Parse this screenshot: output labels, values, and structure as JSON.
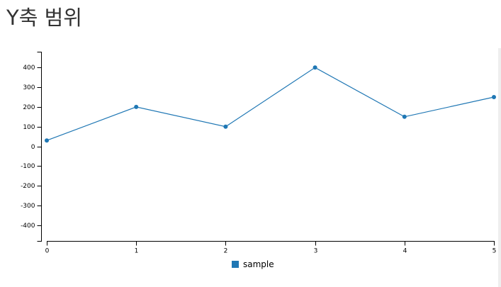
{
  "page": {
    "title": "Y축 범위"
  },
  "colors": {
    "series": "#1f77b4",
    "axis": "#000000",
    "title": "#333333"
  },
  "chart_data": {
    "type": "line",
    "title": "",
    "xlabel": "",
    "ylabel": "",
    "x": [
      0,
      1,
      2,
      3,
      4,
      5
    ],
    "xlim": [
      0,
      5
    ],
    "ylim": [
      -480,
      480
    ],
    "x_ticks": [
      0,
      1,
      2,
      3,
      4,
      5
    ],
    "y_ticks": [
      400,
      300,
      200,
      100,
      0,
      -100,
      -200,
      -300,
      -400
    ],
    "grid": false,
    "legend_position": "bottom-center",
    "series": [
      {
        "name": "sample",
        "values": [
          30,
          200,
          100,
          400,
          150,
          250
        ],
        "color": "#1f77b4"
      }
    ]
  }
}
